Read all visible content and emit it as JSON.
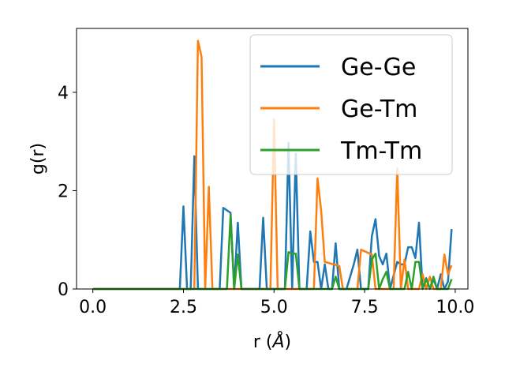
{
  "chart_data": {
    "type": "line",
    "xlabel": "r (",
    "xlabel_unit": "Å",
    "xlabel_close": ")",
    "ylabel": "g(r)",
    "xlim": [
      -0.45,
      10.35
    ],
    "ylim": [
      0,
      5.3
    ],
    "x_ticks": [
      {
        "value": 0.0,
        "label": "0.0"
      },
      {
        "value": 2.5,
        "label": "2.5"
      },
      {
        "value": 5.0,
        "label": "5.0"
      },
      {
        "value": 7.5,
        "label": "7.5"
      },
      {
        "value": 10.0,
        "label": "10.0"
      }
    ],
    "y_ticks": [
      {
        "value": 0,
        "label": "0"
      },
      {
        "value": 2,
        "label": "2"
      },
      {
        "value": 4,
        "label": "4"
      }
    ],
    "grid": false,
    "legend_position": "top-right",
    "series": [
      {
        "name": "Ge-Ge",
        "color": "#1f77b4",
        "points": [
          [
            0.0,
            0
          ],
          [
            2.4,
            0
          ],
          [
            2.5,
            1.68
          ],
          [
            2.6,
            0
          ],
          [
            2.7,
            0
          ],
          [
            2.8,
            2.7
          ],
          [
            2.9,
            0
          ],
          [
            3.5,
            0
          ],
          [
            3.6,
            1.65
          ],
          [
            3.8,
            1.55
          ],
          [
            3.9,
            0
          ],
          [
            4.0,
            1.35
          ],
          [
            4.1,
            0
          ],
          [
            4.6,
            0
          ],
          [
            4.7,
            1.45
          ],
          [
            4.8,
            0
          ],
          [
            5.3,
            0
          ],
          [
            5.4,
            2.97
          ],
          [
            5.5,
            0
          ],
          [
            5.6,
            2.75
          ],
          [
            5.7,
            0
          ],
          [
            5.9,
            0
          ],
          [
            6.0,
            1.17
          ],
          [
            6.1,
            0.55
          ],
          [
            6.2,
            0.55
          ],
          [
            6.3,
            0
          ],
          [
            6.4,
            0.5
          ],
          [
            6.5,
            0
          ],
          [
            6.6,
            0
          ],
          [
            6.7,
            0.93
          ],
          [
            6.8,
            0
          ],
          [
            7.0,
            0
          ],
          [
            7.2,
            0.5
          ],
          [
            7.3,
            0.8
          ],
          [
            7.4,
            0
          ],
          [
            7.6,
            0
          ],
          [
            7.7,
            1.08
          ],
          [
            7.8,
            1.42
          ],
          [
            7.9,
            0.67
          ],
          [
            8.0,
            0.5
          ],
          [
            8.1,
            0.72
          ],
          [
            8.2,
            0
          ],
          [
            8.4,
            0.55
          ],
          [
            8.5,
            0.5
          ],
          [
            8.6,
            0.5
          ],
          [
            8.7,
            0.85
          ],
          [
            8.8,
            0.85
          ],
          [
            8.9,
            0.63
          ],
          [
            9.0,
            1.35
          ],
          [
            9.1,
            0
          ],
          [
            9.2,
            0.22
          ],
          [
            9.3,
            0
          ],
          [
            9.4,
            0.2
          ],
          [
            9.5,
            0
          ],
          [
            9.6,
            0.3
          ],
          [
            9.7,
            0
          ],
          [
            9.8,
            0.15
          ],
          [
            9.9,
            1.22
          ]
        ]
      },
      {
        "name": "Ge-Tm",
        "color": "#ff7f0e",
        "points": [
          [
            0.0,
            0
          ],
          [
            2.8,
            0
          ],
          [
            2.9,
            5.05
          ],
          [
            3.0,
            4.72
          ],
          [
            3.1,
            0
          ],
          [
            3.2,
            2.08
          ],
          [
            3.3,
            0
          ],
          [
            4.9,
            0
          ],
          [
            5.0,
            3.45
          ],
          [
            5.1,
            0
          ],
          [
            6.1,
            0
          ],
          [
            6.2,
            2.25
          ],
          [
            6.3,
            1.6
          ],
          [
            6.4,
            0.55
          ],
          [
            6.8,
            0.47
          ],
          [
            6.9,
            0
          ],
          [
            7.3,
            0
          ],
          [
            7.4,
            0.8
          ],
          [
            7.7,
            0.7
          ],
          [
            7.8,
            0
          ],
          [
            8.3,
            0
          ],
          [
            8.4,
            2.45
          ],
          [
            8.5,
            0
          ],
          [
            8.6,
            0.6
          ],
          [
            8.7,
            0
          ],
          [
            9.0,
            0
          ],
          [
            9.1,
            0.3
          ],
          [
            9.2,
            0
          ],
          [
            9.3,
            0.25
          ],
          [
            9.4,
            0
          ],
          [
            9.6,
            0
          ],
          [
            9.7,
            0.7
          ],
          [
            9.8,
            0.3
          ],
          [
            9.9,
            0.48
          ]
        ]
      },
      {
        "name": "Tm-Tm",
        "color": "#2ca02c",
        "points": [
          [
            0.0,
            0
          ],
          [
            3.7,
            0
          ],
          [
            3.8,
            1.5
          ],
          [
            3.9,
            0
          ],
          [
            4.0,
            0.7
          ],
          [
            4.1,
            0
          ],
          [
            5.3,
            0
          ],
          [
            5.4,
            0.75
          ],
          [
            5.5,
            0.72
          ],
          [
            5.6,
            0.72
          ],
          [
            5.7,
            0
          ],
          [
            6.6,
            0
          ],
          [
            6.7,
            0.25
          ],
          [
            6.8,
            0
          ],
          [
            7.6,
            0
          ],
          [
            7.7,
            0.6
          ],
          [
            7.8,
            0.72
          ],
          [
            7.9,
            0
          ],
          [
            8.0,
            0.2
          ],
          [
            8.1,
            0.35
          ],
          [
            8.2,
            0
          ],
          [
            8.6,
            0
          ],
          [
            8.7,
            0.35
          ],
          [
            8.8,
            0
          ],
          [
            8.9,
            0.55
          ],
          [
            9.0,
            0.55
          ],
          [
            9.1,
            0
          ],
          [
            9.2,
            0.2
          ],
          [
            9.3,
            0
          ],
          [
            9.4,
            0.25
          ],
          [
            9.5,
            0
          ],
          [
            9.8,
            0
          ],
          [
            9.9,
            0.2
          ]
        ]
      }
    ]
  }
}
